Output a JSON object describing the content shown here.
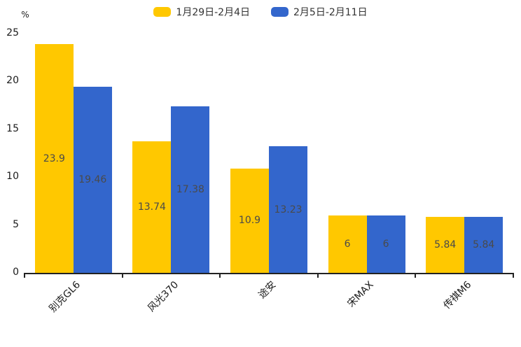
{
  "chart_data": {
    "type": "bar",
    "title": "",
    "ylabel": "%",
    "ylim": [
      0,
      25
    ],
    "yticks": [
      0,
      5,
      10,
      15,
      20,
      25
    ],
    "grid": false,
    "legend_position": "top-center",
    "value_labels_shown": true,
    "categories": [
      "别克GL6",
      "风光370",
      "途安",
      "宋MAX",
      "传祺M6"
    ],
    "series": [
      {
        "name": "1月29日-2月4日",
        "color": "#FFC800",
        "values": [
          23.9,
          13.74,
          10.9,
          6,
          5.84
        ]
      },
      {
        "name": "2月5日-2月11日",
        "color": "#3366CC",
        "values": [
          19.46,
          17.38,
          13.23,
          6,
          5.84
        ]
      }
    ]
  },
  "colors": {
    "axis": "#222222",
    "tick_label": "#1a1a1a",
    "value_label": "#4a4a4a",
    "legend_text": "#333333",
    "background": "#ffffff"
  }
}
